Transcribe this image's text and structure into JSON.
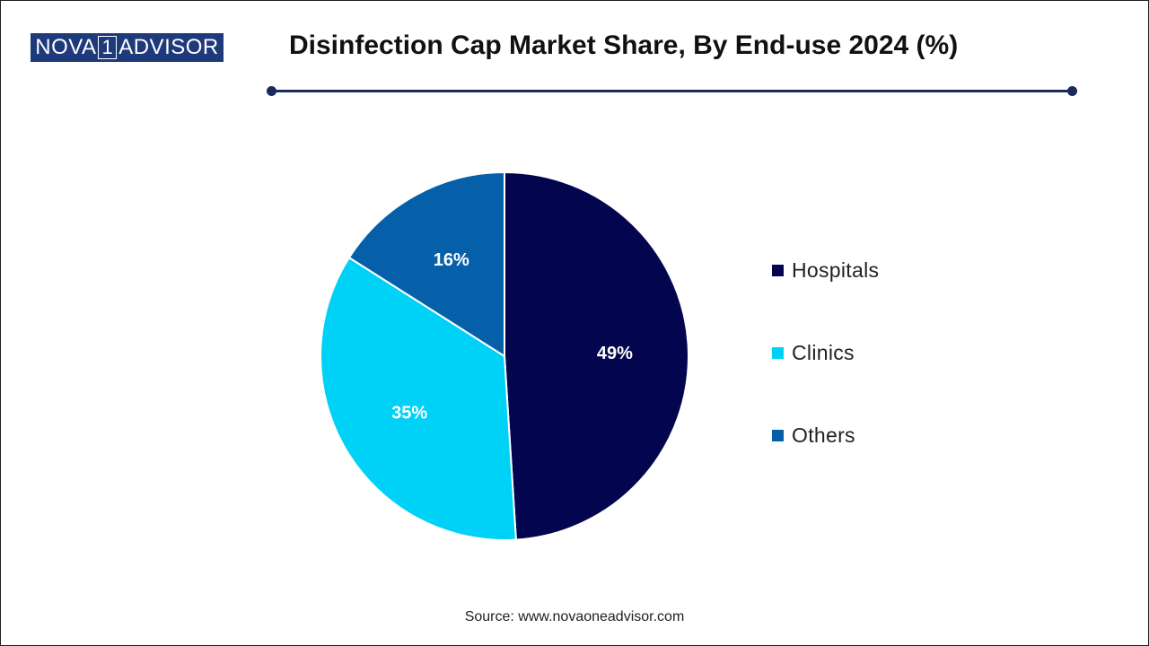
{
  "brand": {
    "part1": "NOVA",
    "digit": "1",
    "part2": "ADVISOR"
  },
  "header": {
    "title": "Disinfection Cap Market Share, By End-use 2024 (%)"
  },
  "colors": {
    "accent": "#1a2a5a",
    "logo_bg": "#1f3a7a"
  },
  "chart_data": {
    "type": "pie",
    "title": "Disinfection Cap Market Share, By End-use 2024 (%)",
    "legend_position": "right",
    "slices": [
      {
        "name": "Hospitals",
        "value": 49,
        "label": "49%",
        "color": "#03054f"
      },
      {
        "name": "Clinics",
        "value": 35,
        "label": "35%",
        "color": "#00d2f7"
      },
      {
        "name": "Others",
        "value": 16,
        "label": "16%",
        "color": "#0660a9"
      }
    ]
  },
  "footer": {
    "source": "Source: www.novaoneadvisor.com"
  }
}
